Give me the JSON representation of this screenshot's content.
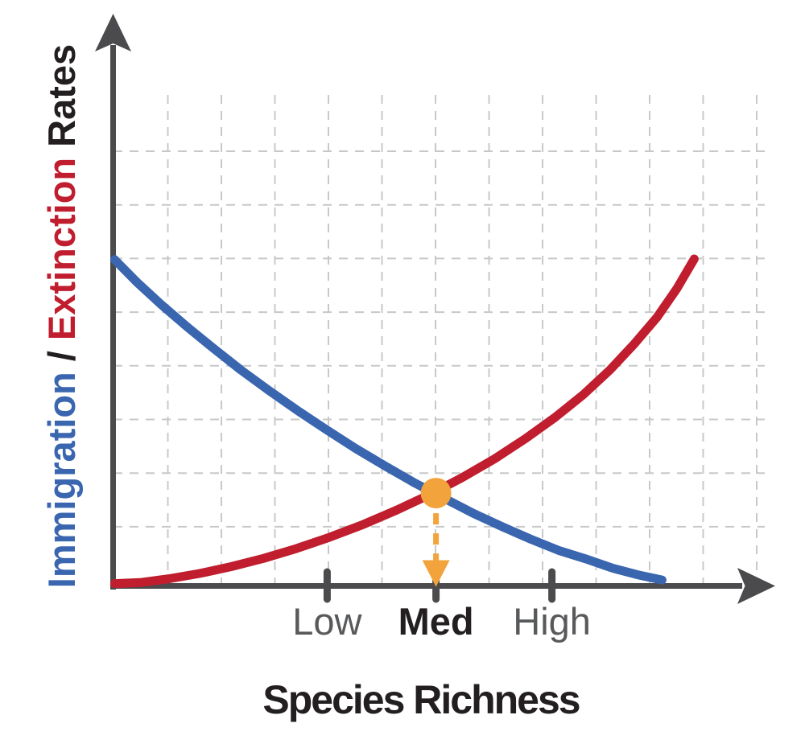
{
  "colors": {
    "immigration_blue": "#3A66AF",
    "extinction_red": "#C01E2E",
    "equilibrium_orange": "#F2A33C",
    "axis_gray": "#4B4B4D",
    "grid_gray": "#C7C8CA",
    "tick_label_gray": "#58595B",
    "text_dark": "#231F20"
  },
  "y_axis_label": {
    "segments": [
      {
        "text": "Immigration",
        "color": "#3A66AF"
      },
      {
        "text": " / ",
        "color": "#231F20"
      },
      {
        "text": "Extinction",
        "color": "#C01E2E"
      },
      {
        "text": " Rates",
        "color": "#231F20"
      }
    ]
  },
  "x_axis_title": "Species Richness",
  "chart_data": {
    "type": "line",
    "title": "",
    "xlabel": "Species Richness",
    "ylabel": "Immigration / Extinction Rates",
    "grid": true,
    "x_range_relative": [
      0,
      1
    ],
    "rate_range_relative": [
      0,
      1
    ],
    "x_ticks": [
      {
        "label": "Low",
        "x": 0.333,
        "emphasis": false
      },
      {
        "label": "Med",
        "x": 0.502,
        "emphasis": true
      },
      {
        "label": "High",
        "x": 0.682,
        "emphasis": false
      }
    ],
    "series": [
      {
        "name": "Immigration",
        "color": "#3A66AF",
        "points": [
          [
            0.003,
            0.998
          ],
          [
            0.037,
            0.93
          ],
          [
            0.075,
            0.861
          ],
          [
            0.115,
            0.793
          ],
          [
            0.156,
            0.727
          ],
          [
            0.199,
            0.66
          ],
          [
            0.242,
            0.598
          ],
          [
            0.287,
            0.536
          ],
          [
            0.332,
            0.477
          ],
          [
            0.377,
            0.42
          ],
          [
            0.423,
            0.366
          ],
          [
            0.469,
            0.314
          ],
          [
            0.515,
            0.267
          ],
          [
            0.56,
            0.221
          ],
          [
            0.605,
            0.18
          ],
          [
            0.649,
            0.142
          ],
          [
            0.692,
            0.108
          ],
          [
            0.734,
            0.082
          ],
          [
            0.775,
            0.054
          ],
          [
            0.815,
            0.033
          ],
          [
            0.853,
            0.017
          ]
        ]
      },
      {
        "name": "Extinction",
        "color": "#C01E2E",
        "points": [
          [
            0.003,
            0.006
          ],
          [
            0.043,
            0.009
          ],
          [
            0.088,
            0.021
          ],
          [
            0.135,
            0.037
          ],
          [
            0.184,
            0.058
          ],
          [
            0.234,
            0.083
          ],
          [
            0.285,
            0.113
          ],
          [
            0.337,
            0.148
          ],
          [
            0.389,
            0.187
          ],
          [
            0.441,
            0.231
          ],
          [
            0.493,
            0.279
          ],
          [
            0.543,
            0.331
          ],
          [
            0.593,
            0.388
          ],
          [
            0.641,
            0.45
          ],
          [
            0.687,
            0.515
          ],
          [
            0.731,
            0.585
          ],
          [
            0.772,
            0.66
          ],
          [
            0.809,
            0.738
          ],
          [
            0.845,
            0.821
          ],
          [
            0.876,
            0.909
          ],
          [
            0.903,
            1.0
          ]
        ]
      }
    ],
    "equilibrium_point": {
      "x": 0.502,
      "rate": 0.283,
      "at_tick": "Med",
      "color": "#F2A33C"
    }
  }
}
